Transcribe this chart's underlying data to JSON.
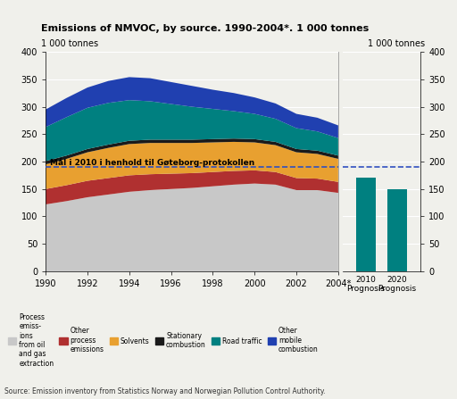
{
  "title": "Emissions of NMVOC, by source. 1990-2004*. 1 000 tonnes",
  "ylabel_left": "1 000 tonnes",
  "ylabel_right": "1 000 tonnes",
  "source": "Source: Emission inventory from Statistics Norway and Norwegian Pollution Control Authority.",
  "years": [
    1990,
    1991,
    1992,
    1993,
    1994,
    1995,
    1996,
    1997,
    1998,
    1999,
    2000,
    2001,
    2002,
    2003,
    2004
  ],
  "process_oil_gas": [
    122,
    128,
    135,
    140,
    145,
    148,
    150,
    152,
    155,
    158,
    160,
    158,
    148,
    148,
    143
  ],
  "other_process": [
    28,
    29,
    30,
    30,
    30,
    29,
    28,
    27,
    26,
    25,
    24,
    23,
    22,
    21,
    20
  ],
  "solvents": [
    45,
    48,
    52,
    55,
    57,
    57,
    56,
    55,
    54,
    53,
    51,
    49,
    47,
    45,
    42
  ],
  "stationary_combustion": [
    6,
    6,
    6,
    6,
    6,
    6,
    6,
    6,
    6,
    6,
    6,
    6,
    6,
    6,
    6
  ],
  "road_traffic": [
    62,
    70,
    75,
    76,
    74,
    70,
    65,
    60,
    55,
    50,
    46,
    42,
    38,
    35,
    32
  ],
  "other_mobile": [
    32,
    35,
    37,
    40,
    42,
    42,
    40,
    38,
    35,
    33,
    30,
    28,
    26,
    25,
    23
  ],
  "bar_2010": 170,
  "bar_2020": 150,
  "gothenburg_line": 190,
  "gothenburg_label": "Mål i 2010 i henhold til Gøteborg-protokollen",
  "ylim": [
    0,
    400
  ],
  "yticks": [
    0,
    50,
    100,
    150,
    200,
    250,
    300,
    350,
    400
  ],
  "colors": {
    "process_oil_gas": "#c8c8c8",
    "other_process": "#b03030",
    "solvents": "#e8a030",
    "stationary_combustion": "#1a1a1a",
    "road_traffic": "#008080",
    "other_mobile": "#2040b0",
    "bar_prognosis": "#008080",
    "gothenburg_line": "#3050c0"
  },
  "background_color": "#f0f0eb"
}
